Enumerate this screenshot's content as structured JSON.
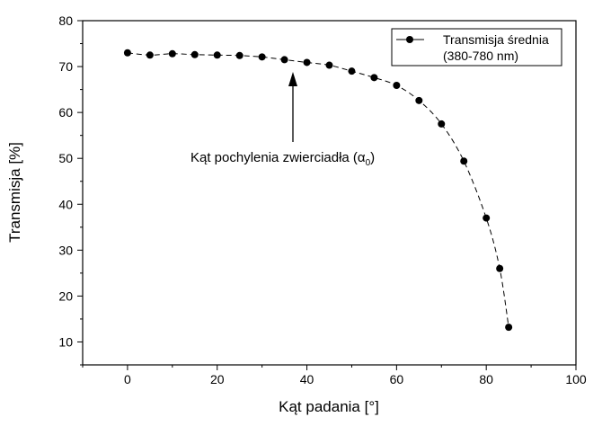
{
  "chart_data": {
    "type": "line",
    "xlabel": "Kąt padania [°]",
    "ylabel": "Transmisja [%]",
    "xlim": [
      -10,
      100
    ],
    "ylim": [
      5,
      80
    ],
    "x_ticks": [
      0,
      20,
      40,
      60,
      80,
      100
    ],
    "y_ticks": [
      10,
      20,
      30,
      40,
      50,
      60,
      70,
      80
    ],
    "grid": false,
    "legend_position": "top-right",
    "series": [
      {
        "name": "Transmisja średnia",
        "name_line2": "(380-780 nm)",
        "marker": "circle",
        "line_style": "dashed",
        "color": "#000000",
        "x": [
          0,
          5,
          10,
          15,
          20,
          25,
          30,
          35,
          40,
          45,
          50,
          55,
          60,
          65,
          70,
          75,
          80,
          83,
          85
        ],
        "y": [
          73.0,
          72.5,
          72.8,
          72.6,
          72.5,
          72.4,
          72.1,
          71.5,
          70.9,
          70.3,
          69.0,
          67.6,
          65.9,
          62.6,
          57.5,
          49.4,
          37.0,
          26.0,
          13.2
        ]
      }
    ],
    "annotations": [
      {
        "text": "Kąt pochylenia zwierciadła (α",
        "subscript": "0",
        "close": ")",
        "arrow_target_x": 37,
        "arrow_target_y": 71.4
      }
    ]
  }
}
